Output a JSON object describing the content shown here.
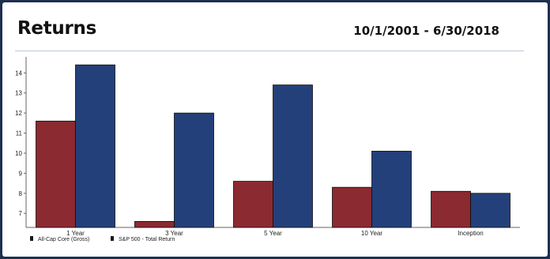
{
  "header": {
    "title": "Returns",
    "date_range": "10/1/2001 - 6/30/2018"
  },
  "colors": {
    "page_frame": "#1e2f4f",
    "series_1": "#8b2a30",
    "series_2": "#24407a"
  },
  "chart_data": {
    "type": "bar",
    "title": "Returns",
    "subtitle": "10/1/2001 - 6/30/2018",
    "categories": [
      "1 Year",
      "3 Year",
      "5 Year",
      "10 Year",
      "Inception"
    ],
    "series": [
      {
        "name": "All-Cap Core (Gross)",
        "color": "#8b2a30",
        "values": [
          11.6,
          6.6,
          8.6,
          8.3,
          8.1
        ]
      },
      {
        "name": "S&P 500 - Total Return",
        "color": "#24407a",
        "values": [
          14.4,
          12.0,
          13.4,
          10.1,
          8.0
        ]
      }
    ],
    "ylim": [
      6.3,
      14.8
    ],
    "yticks": [
      7,
      8,
      9,
      10,
      11,
      12,
      13,
      14
    ],
    "xlabel": "",
    "ylabel": "",
    "grid": false,
    "legend_position": "bottom-left"
  }
}
